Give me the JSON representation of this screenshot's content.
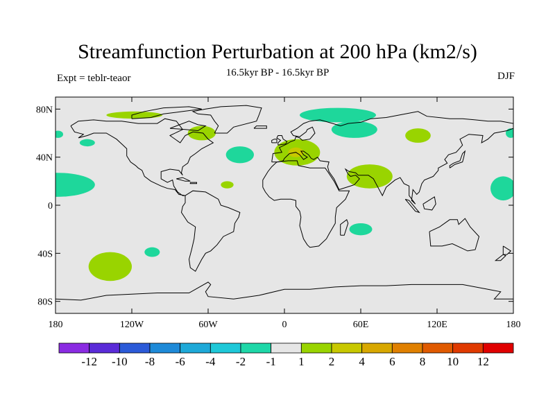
{
  "header": {
    "title": "Streamfunction Perturbation at 200 hPa (km2/s)",
    "subtitle": "16.5kyr BP - 16.5kyr BP",
    "left_label": "Expt = teblr-teaor",
    "right_label": "DJF"
  },
  "map": {
    "projection": "cylindrical-equidistant",
    "lon_range": [
      -180,
      180
    ],
    "lat_range": [
      -90,
      90
    ],
    "background_color": "#e6e6e6",
    "y_ticks": [
      {
        "lat": 80,
        "label": "80N"
      },
      {
        "lat": 40,
        "label": "40N"
      },
      {
        "lat": 0,
        "label": "0"
      },
      {
        "lat": -40,
        "label": "40S"
      },
      {
        "lat": -80,
        "label": "80S"
      }
    ],
    "x_ticks": [
      {
        "lon": -180,
        "label": "180"
      },
      {
        "lon": -120,
        "label": "120W"
      },
      {
        "lon": -60,
        "label": "60W"
      },
      {
        "lon": 0,
        "label": "0"
      },
      {
        "lon": 60,
        "label": "60E"
      },
      {
        "lon": 120,
        "label": "120E"
      },
      {
        "lon": 180,
        "label": "180"
      }
    ],
    "anomalies": [
      {
        "lon": -118,
        "lat": 75,
        "rlon": 22,
        "rlat": 3,
        "color": "#99d400"
      },
      {
        "lon": -65,
        "lat": 60,
        "rlon": 11,
        "rlat": 6,
        "color": "#99d400"
      },
      {
        "lon": 42,
        "lat": 75,
        "rlon": 30,
        "rlat": 6,
        "color": "#1ed79b"
      },
      {
        "lon": 55,
        "lat": 63,
        "rlon": 18,
        "rlat": 7,
        "color": "#1ed79b"
      },
      {
        "lon": 105,
        "lat": 58,
        "rlon": 10,
        "rlat": 6,
        "color": "#99d400"
      },
      {
        "lon": -178,
        "lat": 59,
        "rlon": 4,
        "rlat": 3,
        "color": "#1ed79b"
      },
      {
        "lon": -155,
        "lat": 52,
        "rlon": 6,
        "rlat": 3,
        "color": "#1ed79b"
      },
      {
        "lon": 178,
        "lat": 60,
        "rlon": 4,
        "rlat": 4,
        "color": "#1ed79b"
      },
      {
        "lon": -35,
        "lat": 42,
        "rlon": 11,
        "rlat": 7,
        "color": "#1ed79b"
      },
      {
        "lon": -179,
        "lat": 17,
        "rlon": 30,
        "rlat": 10,
        "color": "#1ed79b"
      },
      {
        "lon": 172,
        "lat": 14,
        "rlon": 10,
        "rlat": 10,
        "color": "#1ed79b"
      },
      {
        "lon": 10,
        "lat": 44,
        "rlon": 18,
        "rlat": 11,
        "color": "#99d400"
      },
      {
        "lon": 67,
        "lat": 24,
        "rlon": 18,
        "rlat": 10,
        "color": "#99d400"
      },
      {
        "lon": 60,
        "lat": -20,
        "rlon": 9,
        "rlat": 5,
        "color": "#1ed79b"
      },
      {
        "lon": -104,
        "lat": -39,
        "rlon": 6,
        "rlat": 4,
        "color": "#1ed79b"
      },
      {
        "lon": -45,
        "lat": 17,
        "rlon": 5,
        "rlat": 3,
        "color": "#99d400"
      },
      {
        "lon": -137,
        "lat": -51,
        "rlon": 17,
        "rlat": 12,
        "color": "#99d400"
      }
    ],
    "peak_marks": [
      {
        "lon": 9,
        "lat": 44,
        "rlon": 6,
        "rlat": 4,
        "color": "#c8c800"
      }
    ]
  },
  "colorbar": {
    "colors": [
      "#8a2be2",
      "#5a2bd8",
      "#2b5ad8",
      "#1e8ad8",
      "#1ea9d8",
      "#1ec8d8",
      "#1ed7a8",
      "#e6e6e6",
      "#99d400",
      "#c8c800",
      "#d8a800",
      "#e08000",
      "#e05a00",
      "#e03a00",
      "#e00000"
    ],
    "labels": [
      "-12",
      "-10",
      "-8",
      "-6",
      "-4",
      "-2",
      "-1",
      "1",
      "2",
      "4",
      "6",
      "8",
      "10",
      "12"
    ]
  }
}
